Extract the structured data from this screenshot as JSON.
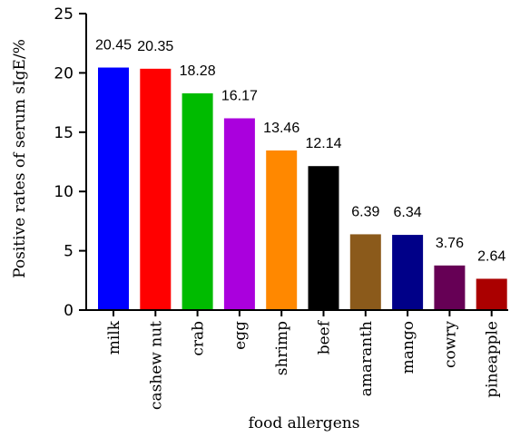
{
  "chart_data": {
    "type": "bar",
    "categories": [
      "milk",
      "cashew nut",
      "crab",
      "egg",
      "shrimp",
      "beef",
      "amaranth",
      "mango",
      "cowry",
      "pineapple"
    ],
    "values": [
      20.45,
      20.35,
      18.28,
      16.17,
      13.46,
      12.14,
      6.39,
      6.34,
      3.76,
      2.64
    ],
    "data_labels": [
      "20.45",
      "20.35",
      "18.28",
      "16.17",
      "13.46",
      "12.14",
      "6.39",
      "6.34",
      "3.76",
      "2.64"
    ],
    "colors": [
      "#0000ff",
      "#ff0000",
      "#00bb00",
      "#aa00dd",
      "#ff8800",
      "#000000",
      "#8b5a1b",
      "#000088",
      "#660055",
      "#aa0000"
    ],
    "title": "",
    "xlabel": "food allergens",
    "ylabel": "Positive rates of serum sIgE/%",
    "ylim": [
      0,
      25
    ],
    "yticks": [
      0,
      5,
      10,
      15,
      20,
      25
    ],
    "ytick_labels": [
      "0",
      "5",
      "10",
      "15",
      "20",
      "25"
    ],
    "grid": false,
    "legend": "none"
  }
}
